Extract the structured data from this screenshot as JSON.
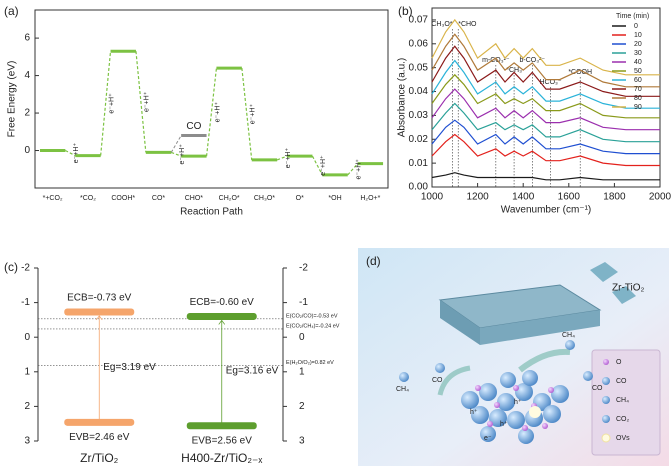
{
  "chart_data": [
    {
      "type": "energy-profile",
      "label": "(a)",
      "ylabel": "Free Energy (eV)",
      "xlabel": "Reaction Path",
      "categories": [
        "*+CO₂",
        "*CO₂",
        "COOH*",
        "CO*",
        "CHO*",
        "CH₂O*",
        "CH₃O*",
        "O*",
        "*OH",
        "H₂O+*"
      ],
      "series": [
        {
          "color": "#7cc242",
          "values": [
            0,
            -0.27,
            5.3,
            -0.1,
            -0.3,
            4.4,
            -0.5,
            -0.3,
            -1.3,
            -0.7
          ]
        },
        {
          "name": "CO",
          "color": "#8c8c8c",
          "values": [
            null,
            null,
            null,
            null,
            0.8,
            null,
            null,
            null,
            null,
            null
          ]
        }
      ],
      "transition_labels": [
        null,
        "e⁻+H⁺",
        "e⁻+H⁺",
        "e⁻+H⁺",
        "e⁻+H⁺",
        "e⁻+H⁺",
        "e⁻+H⁺",
        "e⁻+H⁺",
        "e⁻+H⁺",
        "e⁻+H⁺"
      ],
      "ylim": [
        -2,
        7.5
      ],
      "yticks": [
        0,
        2,
        4,
        6
      ]
    },
    {
      "type": "line",
      "label": "(b)",
      "xlabel": "Wavenumber (cm⁻¹)",
      "ylabel": "Absorbance (a.u.)",
      "legend_title": "Time (min)",
      "x": [
        1000,
        1060,
        1100,
        1140,
        1200,
        1280,
        1320,
        1360,
        1400,
        1440,
        1500,
        1560,
        1650,
        1750,
        1850,
        2000
      ],
      "series": [
        {
          "name": "0",
          "color": "#1a1a1a",
          "values": [
            0.004,
            0.005,
            0.006,
            0.005,
            0.004,
            0.004,
            0.004,
            0.004,
            0.004,
            0.004,
            0.003,
            0.003,
            0.004,
            0.003,
            0.003,
            0.003
          ]
        },
        {
          "name": "10",
          "color": "#e3211c",
          "values": [
            0.013,
            0.019,
            0.022,
            0.019,
            0.013,
            0.016,
            0.013,
            0.015,
            0.013,
            0.015,
            0.011,
            0.011,
            0.013,
            0.01,
            0.009,
            0.009
          ]
        },
        {
          "name": "20",
          "color": "#1f4fd1",
          "values": [
            0.018,
            0.025,
            0.028,
            0.025,
            0.018,
            0.022,
            0.018,
            0.021,
            0.018,
            0.021,
            0.016,
            0.016,
            0.018,
            0.015,
            0.014,
            0.014
          ]
        },
        {
          "name": "30",
          "color": "#2aa198",
          "values": [
            0.024,
            0.031,
            0.035,
            0.031,
            0.024,
            0.027,
            0.024,
            0.026,
            0.024,
            0.026,
            0.021,
            0.021,
            0.024,
            0.02,
            0.019,
            0.019
          ]
        },
        {
          "name": "40",
          "color": "#9b2fae",
          "values": [
            0.029,
            0.037,
            0.041,
            0.037,
            0.029,
            0.033,
            0.029,
            0.032,
            0.029,
            0.032,
            0.027,
            0.027,
            0.029,
            0.025,
            0.024,
            0.024
          ]
        },
        {
          "name": "50",
          "color": "#8a9a1b",
          "values": [
            0.035,
            0.043,
            0.047,
            0.043,
            0.035,
            0.039,
            0.035,
            0.037,
            0.035,
            0.037,
            0.032,
            0.032,
            0.035,
            0.03,
            0.029,
            0.029
          ]
        },
        {
          "name": "60",
          "color": "#2bb3d9",
          "values": [
            0.039,
            0.048,
            0.053,
            0.048,
            0.039,
            0.044,
            0.039,
            0.042,
            0.039,
            0.042,
            0.036,
            0.036,
            0.039,
            0.035,
            0.033,
            0.033
          ]
        },
        {
          "name": "70",
          "color": "#8b1a1a",
          "values": [
            0.044,
            0.054,
            0.059,
            0.054,
            0.044,
            0.049,
            0.044,
            0.048,
            0.044,
            0.048,
            0.041,
            0.041,
            0.044,
            0.04,
            0.038,
            0.038
          ]
        },
        {
          "name": "80",
          "color": "#b07a3a",
          "values": [
            0.049,
            0.059,
            0.064,
            0.059,
            0.049,
            0.054,
            0.049,
            0.052,
            0.049,
            0.052,
            0.045,
            0.045,
            0.049,
            0.044,
            0.042,
            0.042
          ]
        },
        {
          "name": "90",
          "color": "#d9b44a",
          "values": [
            0.054,
            0.065,
            0.07,
            0.065,
            0.054,
            0.06,
            0.054,
            0.058,
            0.054,
            0.058,
            0.051,
            0.051,
            0.054,
            0.049,
            0.047,
            0.047
          ]
        }
      ],
      "annotations": [
        {
          "text": "CH₃O*",
          "x": 1090
        },
        {
          "text": "*CHO",
          "x": 1115
        },
        {
          "text": "m-CO₃²⁻",
          "x": 1280
        },
        {
          "text": "*CH₃",
          "x": 1360
        },
        {
          "text": "b-CO₃²⁻",
          "x": 1440
        },
        {
          "text": "HCO₃⁻",
          "x": 1520
        },
        {
          "text": "*COOH",
          "x": 1650
        }
      ],
      "xlim": [
        1000,
        2000
      ],
      "xticks": [
        1000,
        1200,
        1400,
        1600,
        1800,
        2000
      ],
      "ylim": [
        0,
        0.075
      ],
      "yticks": [
        {
          "value": 0,
          "label": "0.00"
        },
        0.01,
        0.02,
        0.03,
        0.04,
        0.05,
        0.06,
        0.07
      ]
    },
    {
      "type": "band-diagram",
      "label": "(c)",
      "categories": [
        "Zr/TiO₂",
        "H400-Zr/TiO₂₋ₓ"
      ],
      "colors": [
        "#f5a56b",
        "#5d9e2e"
      ],
      "cb": {
        "values": [
          -0.73,
          -0.6
        ],
        "value_labels": [
          "ECB=-0.73 eV",
          "ECB=-0.60 eV"
        ]
      },
      "vb": {
        "values": [
          2.46,
          2.56
        ],
        "value_labels": [
          "EVB=2.46 eV",
          "EVB=2.56 eV"
        ]
      },
      "gap": {
        "values": [
          3.19,
          3.16
        ],
        "value_labels": [
          "Eg=3.19 eV",
          "Eg=3.16 eV"
        ]
      },
      "references": [
        {
          "label": "E(CO₂/CO)=-0.53 eV",
          "value": -0.53
        },
        {
          "label": "E(CO₂/CH₄)=-0.24 eV",
          "value": -0.24
        },
        {
          "label": "E(H₂O/O₂)=0.82 eV",
          "value": 0.82
        }
      ],
      "ylim": [
        -2,
        3
      ],
      "yticks": [
        -2,
        -1,
        0,
        1,
        2,
        3
      ]
    }
  ],
  "illustration": {
    "label": "(d)",
    "material": "Zr-TiO₂",
    "gases": [
      "CH₄",
      "CO",
      "CH₄",
      "CO"
    ],
    "charges": [
      "h⁺",
      "h⁺",
      "h⁺",
      "e⁻"
    ],
    "legend": [
      "O",
      "CO",
      "CH₄",
      "CO₂",
      "OVs"
    ]
  }
}
